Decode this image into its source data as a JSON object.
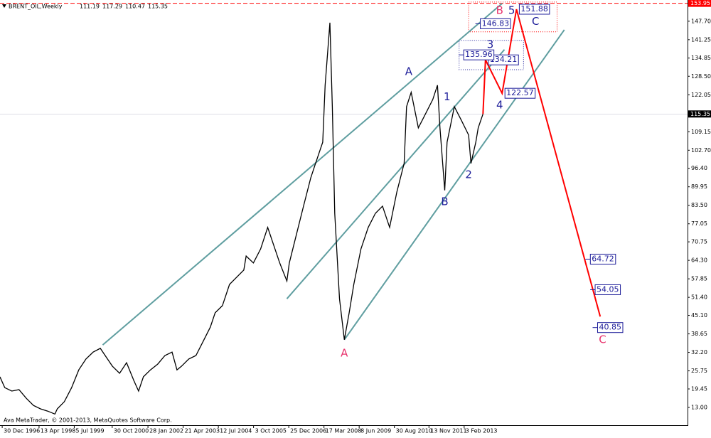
{
  "chart_data": {
    "type": "line",
    "title": "BRENT_OIL,Weekly",
    "header_values": [
      111.19,
      117.29,
      110.47,
      115.35
    ],
    "footer": "Ava MetaTrader, © 2001-2013, MetaQuotes Software Corp.",
    "color": "#000000",
    "xlim": [
      "1996-12-02",
      "2020-11-16"
    ],
    "ylim": [
      6.8,
      155.1
    ],
    "xticks": [
      {
        "value": "1996-12-30",
        "label": "30 Dec 1996"
      },
      {
        "value": "1998-04-13",
        "label": "13 Apr 1998"
      },
      {
        "value": "1999-07-05",
        "label": "5 Jul 1999"
      },
      {
        "value": "2000-10-30",
        "label": "30 Oct 2000"
      },
      {
        "value": "2002-01-28",
        "label": "28 Jan 2002"
      },
      {
        "value": "2003-04-21",
        "label": "21 Apr 2003"
      },
      {
        "value": "2004-07-12",
        "label": "12 Jul 2004"
      },
      {
        "value": "2005-10-03",
        "label": "3 Oct 2005"
      },
      {
        "value": "2006-12-25",
        "label": "25 Dec 2006"
      },
      {
        "value": "2008-03-17",
        "label": "17 Mar 2008"
      },
      {
        "value": "2009-06-08",
        "label": "8 Jun 2009"
      },
      {
        "value": "2010-08-30",
        "label": "30 Aug 2010"
      },
      {
        "value": "2011-11-13",
        "label": "13 Nov 2011"
      },
      {
        "value": "2013-02-03",
        "label": "3 Feb 2013"
      }
    ],
    "yticks": [
      {
        "value": 147.7,
        "label": "147.70"
      },
      141.25,
      134.85,
      {
        "value": 128.5,
        "label": "128.50"
      },
      122.05,
      109.15,
      {
        "value": 102.7,
        "label": "102.70"
      },
      {
        "value": 96.4,
        "label": "96.40"
      },
      89.95,
      {
        "value": 83.5,
        "label": "83.50"
      },
      77.05,
      70.75,
      {
        "value": 64.3,
        "label": "64.30"
      },
      57.85,
      {
        "value": 51.4,
        "label": "51.40"
      },
      {
        "value": 45.1,
        "label": "45.10"
      },
      38.65,
      {
        "value": 32.2,
        "label": "32.20"
      },
      25.75,
      19.45,
      {
        "value": 13,
        "label": "13.00"
      }
    ],
    "alert": {
      "value": 153.95,
      "label": "153.95",
      "color": "#ff0000"
    },
    "x": [
      "1996-12",
      "1997-02",
      "1997-05",
      "1997-08",
      "1997-11",
      "1998-02",
      "1998-05",
      "1998-08",
      "1998-11",
      "1998-12",
      "1999-03",
      "1999-06",
      "1999-09",
      "1999-12",
      "2000-03",
      "2000-06",
      "2000-08",
      "2000-11",
      "2001-02",
      "2001-05",
      "2001-08",
      "2001-10",
      "2001-12",
      "2002-03",
      "2002-06",
      "2002-09",
      "2002-12",
      "2003-02",
      "2003-04",
      "2003-07",
      "2003-10",
      "2004-01",
      "2004-04",
      "2004-06",
      "2004-09",
      "2004-12",
      "2005-03",
      "2005-06",
      "2005-07",
      "2005-10",
      "2006-01",
      "2006-04",
      "2006-06",
      "2006-09",
      "2006-12",
      "2007-01",
      "2007-04",
      "2007-07",
      "2007-10",
      "2007-12",
      "2008-03",
      "2008-04",
      "2008-06",
      "2008-07",
      "2008-08",
      "2008-10",
      "2008-12",
      "2009-02",
      "2009-04",
      "2009-07",
      "2009-10",
      "2010-01",
      "2010-04",
      "2010-07",
      "2010-10",
      "2011-01",
      "2011-02",
      "2011-04",
      "2011-07",
      "2011-10",
      "2012-01",
      "2012-03",
      "2012-04",
      "2012-06",
      "2012-07",
      "2012-10",
      "2013-01",
      "2013-04",
      "2013-05",
      "2013-07",
      "2013-08",
      "2013-10"
    ],
    "values": [
      23.7,
      19.9,
      18.7,
      19.2,
      16.2,
      13.7,
      12.5,
      11.7,
      10.7,
      12.5,
      15.0,
      19.9,
      26.1,
      29.9,
      32.3,
      33.6,
      31.1,
      27.4,
      24.9,
      28.6,
      22.4,
      18.7,
      23.7,
      26.1,
      28.1,
      31.1,
      32.3,
      26.1,
      27.4,
      29.9,
      31.1,
      36.1,
      41.0,
      46.0,
      48.5,
      55.9,
      58.4,
      60.9,
      65.8,
      63.4,
      68.3,
      75.8,
      70.8,
      63.4,
      57.1,
      63.4,
      73.3,
      83.2,
      93.1,
      98.1,
      105.5,
      125.4,
      147.2,
      117.9,
      80.7,
      50.9,
      36.6,
      46.0,
      55.9,
      68.3,
      75.8,
      80.7,
      83.2,
      75.8,
      88.2,
      98.1,
      117.9,
      122.9,
      110.5,
      115.4,
      120.4,
      125.4,
      110.5,
      88.7,
      105.5,
      117.9,
      113.0,
      108.0,
      98.1,
      105.5,
      110.5,
      115.35
    ],
    "trendlines": [
      {
        "color": "#5f9ea0",
        "x": [
          "2000-07",
          "2014-06"
        ],
        "y": [
          34.8,
          153.9
        ]
      },
      {
        "color": "#5f9ea0",
        "x": [
          "2006-12",
          "2014-07"
        ],
        "y": [
          50.9,
          137.8
        ]
      },
      {
        "color": "#5f9ea0",
        "x": [
          "2008-12",
          "2016-08"
        ],
        "y": [
          36.6,
          144.7
        ]
      }
    ],
    "projection": {
      "color": "#ff0000",
      "x": [
        "2013-10",
        "2013-11",
        "2014-06",
        "2014-12",
        "2017-11"
      ],
      "values": [
        115.35,
        134.21,
        122.57,
        151.88,
        44.7
      ],
      "value_labels": [
        null,
        "134.21",
        "122.57",
        "151.88",
        null
      ]
    },
    "levels": [
      {
        "x": "2013-01",
        "value": 135.96
      },
      {
        "x": "2013-08",
        "value": 146.83
      },
      {
        "x": "2017-06",
        "value": 64.72
      },
      {
        "x": "2017-08",
        "value": 54.05
      },
      {
        "x": "2017-09",
        "value": 40.85
      }
    ],
    "zones": [
      {
        "color": "#ff0000",
        "x": [
          "2013-04",
          "2016-05"
        ],
        "y": [
          154.4,
          144.0
        ]
      },
      {
        "color": "#1c1c99",
        "x": [
          "2012-12",
          "2015-03"
        ],
        "y": [
          141.0,
          130.8
        ]
      }
    ],
    "wave_labels": [
      {
        "text": "A",
        "x": "2011-03",
        "y": 130.1,
        "color": "#1c1c99"
      },
      {
        "text": "A",
        "x": "2008-12",
        "y": 31.9,
        "color": "#e8336d"
      },
      {
        "text": "1",
        "x": "2012-07",
        "y": 121.2,
        "color": "#1c1c99"
      },
      {
        "text": "B",
        "x": "2012-06",
        "y": 84.7,
        "color": "#1c1c99"
      },
      {
        "text": "2",
        "x": "2013-04",
        "y": 94.1,
        "color": "#1c1c99"
      },
      {
        "text": "3",
        "x": "2014-01",
        "y": 139.5,
        "color": "#1c1c99"
      },
      {
        "text": "4",
        "x": "2014-05",
        "y": 118.4,
        "color": "#1c1c99"
      },
      {
        "text": "5",
        "x": "2014-10",
        "y": 151.4,
        "color": "#1c1c99"
      },
      {
        "text": "B",
        "x": "2014-05",
        "y": 151.4,
        "color": "#e8336d"
      },
      {
        "text": "C",
        "x": "2015-08",
        "y": 147.5,
        "color": "#1c1c99"
      },
      {
        "text": "C",
        "x": "2017-12",
        "y": 36.6,
        "color": "#e8336d"
      }
    ]
  }
}
